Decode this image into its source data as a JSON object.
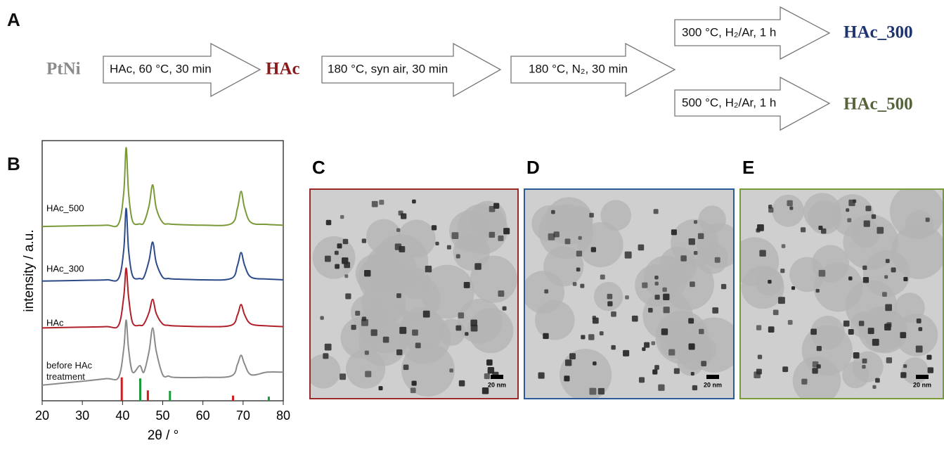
{
  "scheme": {
    "label": "A",
    "start": "PtNi",
    "step1": "HAc, 60 °C, 30 min",
    "intermediate": "HAc",
    "step2": "180 °C, syn air, 30 min",
    "step3": "180 °C, N₂, 30 min",
    "branch1": {
      "step": "300 °C, H₂/Ar, 1 h",
      "product": "HAc_300"
    },
    "branch2": {
      "step": "500 °C, H₂/Ar, 1 h",
      "product": "HAc_500"
    }
  },
  "chart_data": {
    "type": "line",
    "label": "B",
    "xlabel": "2θ / °",
    "ylabel": "intensity / a.u.",
    "xlim": [
      20,
      80
    ],
    "xticks": [
      20,
      30,
      40,
      50,
      60,
      70,
      80
    ],
    "ylim": [
      0,
      100
    ],
    "x": [
      20,
      30,
      36,
      39,
      40.3,
      40.9,
      41.5,
      42.5,
      44.3,
      45.3,
      46.6,
      47.5,
      48.4,
      50,
      51.5,
      53,
      60,
      67,
      68.6,
      69.5,
      70.4,
      72,
      76,
      80
    ],
    "series": [
      {
        "name": "HAc_500",
        "color": "#7a9a3a",
        "values": [
          67,
          67.3,
          67.5,
          68,
          80,
          97.3,
          80,
          69,
          68,
          68.5,
          75,
          83,
          74,
          68.5,
          68,
          67.8,
          67.5,
          68,
          74,
          80.5,
          74,
          68.5,
          67.8,
          67.5
        ]
      },
      {
        "name": "HAc_300",
        "color": "#2d4a8a",
        "values": [
          46,
          46.3,
          46.5,
          47,
          58,
          74,
          58,
          48,
          47,
          47.5,
          54,
          61,
          53,
          47.5,
          47,
          46.8,
          46.5,
          47,
          52,
          57,
          52,
          47.5,
          46.8,
          46.5
        ]
      },
      {
        "name": "HAc",
        "color": "#b0202a",
        "values": [
          28,
          28.3,
          28.5,
          29,
          40,
          51,
          40,
          30,
          29,
          29.5,
          34,
          39,
          33.5,
          29.5,
          29,
          28.8,
          28.5,
          29,
          33,
          37,
          33,
          29.5,
          28.8,
          28.5
        ]
      },
      {
        "name": "before HAc treatment",
        "color": "#8a8a8a",
        "values": [
          6,
          7.5,
          8.5,
          9,
          20,
          31,
          20,
          11,
          13.5,
          11,
          19,
          28,
          19,
          10,
          9.5,
          9,
          9,
          9.5,
          14,
          17.5,
          14,
          10,
          11,
          11
        ]
      }
    ],
    "references": [
      {
        "color": "#d01c1c",
        "x": [
          39.8,
          46.3,
          67.5
        ],
        "values": [
          9,
          4,
          2
        ]
      },
      {
        "color": "#1a9a3a",
        "x": [
          44.4,
          51.8,
          76.4
        ],
        "values": [
          8.6,
          3.8,
          1.6
        ]
      }
    ]
  },
  "tem_panels": [
    {
      "label": "C",
      "scale_bar": "20 nm",
      "color": "#9a2a2a"
    },
    {
      "label": "D",
      "scale_bar": "20 nm",
      "color": "#2a5a9a"
    },
    {
      "label": "E",
      "scale_bar": "20 nm",
      "color": "#7a9a3a"
    }
  ]
}
